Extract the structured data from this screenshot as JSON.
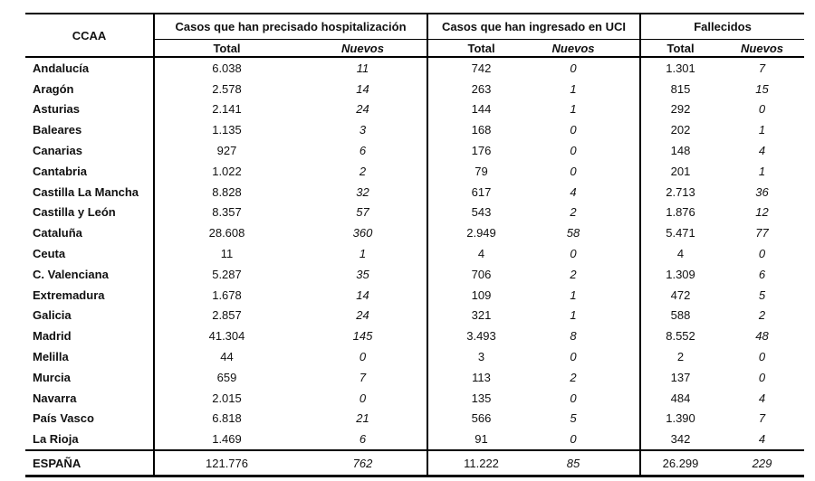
{
  "table": {
    "headers": {
      "ccaa": "CCAA",
      "groups": [
        {
          "label": "Casos que han precisado hospitalización",
          "cols": [
            "Total",
            "Nuevos"
          ]
        },
        {
          "label": "Casos que han ingresado en UCI",
          "cols": [
            "Total",
            "Nuevos"
          ]
        },
        {
          "label": "Fallecidos",
          "cols": [
            "Total",
            "Nuevos"
          ]
        }
      ]
    },
    "rows": [
      {
        "ccaa": "Andalucía",
        "hosp_total": "6.038",
        "hosp_nuevos": "11",
        "uci_total": "742",
        "uci_nuevos": "0",
        "fall_total": "1.301",
        "fall_nuevos": "7"
      },
      {
        "ccaa": "Aragón",
        "hosp_total": "2.578",
        "hosp_nuevos": "14",
        "uci_total": "263",
        "uci_nuevos": "1",
        "fall_total": "815",
        "fall_nuevos": "15"
      },
      {
        "ccaa": "Asturias",
        "hosp_total": "2.141",
        "hosp_nuevos": "24",
        "uci_total": "144",
        "uci_nuevos": "1",
        "fall_total": "292",
        "fall_nuevos": "0"
      },
      {
        "ccaa": "Baleares",
        "hosp_total": "1.135",
        "hosp_nuevos": "3",
        "uci_total": "168",
        "uci_nuevos": "0",
        "fall_total": "202",
        "fall_nuevos": "1"
      },
      {
        "ccaa": "Canarias",
        "hosp_total": "927",
        "hosp_nuevos": "6",
        "uci_total": "176",
        "uci_nuevos": "0",
        "fall_total": "148",
        "fall_nuevos": "4"
      },
      {
        "ccaa": "Cantabria",
        "hosp_total": "1.022",
        "hosp_nuevos": "2",
        "uci_total": "79",
        "uci_nuevos": "0",
        "fall_total": "201",
        "fall_nuevos": "1"
      },
      {
        "ccaa": "Castilla La Mancha",
        "hosp_total": "8.828",
        "hosp_nuevos": "32",
        "uci_total": "617",
        "uci_nuevos": "4",
        "fall_total": "2.713",
        "fall_nuevos": "36"
      },
      {
        "ccaa": "Castilla y León",
        "hosp_total": "8.357",
        "hosp_nuevos": "57",
        "uci_total": "543",
        "uci_nuevos": "2",
        "fall_total": "1.876",
        "fall_nuevos": "12"
      },
      {
        "ccaa": "Cataluña",
        "hosp_total": "28.608",
        "hosp_nuevos": "360",
        "uci_total": "2.949",
        "uci_nuevos": "58",
        "fall_total": "5.471",
        "fall_nuevos": "77"
      },
      {
        "ccaa": "Ceuta",
        "hosp_total": "11",
        "hosp_nuevos": "1",
        "uci_total": "4",
        "uci_nuevos": "0",
        "fall_total": "4",
        "fall_nuevos": "0"
      },
      {
        "ccaa": "C. Valenciana",
        "hosp_total": "5.287",
        "hosp_nuevos": "35",
        "uci_total": "706",
        "uci_nuevos": "2",
        "fall_total": "1.309",
        "fall_nuevos": "6"
      },
      {
        "ccaa": "Extremadura",
        "hosp_total": "1.678",
        "hosp_nuevos": "14",
        "uci_total": "109",
        "uci_nuevos": "1",
        "fall_total": "472",
        "fall_nuevos": "5"
      },
      {
        "ccaa": "Galicia",
        "hosp_total": "2.857",
        "hosp_nuevos": "24",
        "uci_total": "321",
        "uci_nuevos": "1",
        "fall_total": "588",
        "fall_nuevos": "2"
      },
      {
        "ccaa": "Madrid",
        "hosp_total": "41.304",
        "hosp_nuevos": "145",
        "uci_total": "3.493",
        "uci_nuevos": "8",
        "fall_total": "8.552",
        "fall_nuevos": "48"
      },
      {
        "ccaa": "Melilla",
        "hosp_total": "44",
        "hosp_nuevos": "0",
        "uci_total": "3",
        "uci_nuevos": "0",
        "fall_total": "2",
        "fall_nuevos": "0"
      },
      {
        "ccaa": "Murcia",
        "hosp_total": "659",
        "hosp_nuevos": "7",
        "uci_total": "113",
        "uci_nuevos": "2",
        "fall_total": "137",
        "fall_nuevos": "0"
      },
      {
        "ccaa": "Navarra",
        "hosp_total": "2.015",
        "hosp_nuevos": "0",
        "uci_total": "135",
        "uci_nuevos": "0",
        "fall_total": "484",
        "fall_nuevos": "4"
      },
      {
        "ccaa": "País Vasco",
        "hosp_total": "6.818",
        "hosp_nuevos": "21",
        "uci_total": "566",
        "uci_nuevos": "5",
        "fall_total": "1.390",
        "fall_nuevos": "7"
      },
      {
        "ccaa": "La Rioja",
        "hosp_total": "1.469",
        "hosp_nuevos": "6",
        "uci_total": "91",
        "uci_nuevos": "0",
        "fall_total": "342",
        "fall_nuevos": "4"
      }
    ],
    "total_row": {
      "ccaa": "ESPAÑA",
      "hosp_total": "121.776",
      "hosp_nuevos": "762",
      "uci_total": "11.222",
      "uci_nuevos": "85",
      "fall_total": "26.299",
      "fall_nuevos": "229"
    }
  },
  "colors": {
    "text": "#111111",
    "border": "#000000",
    "background": "#ffffff"
  }
}
